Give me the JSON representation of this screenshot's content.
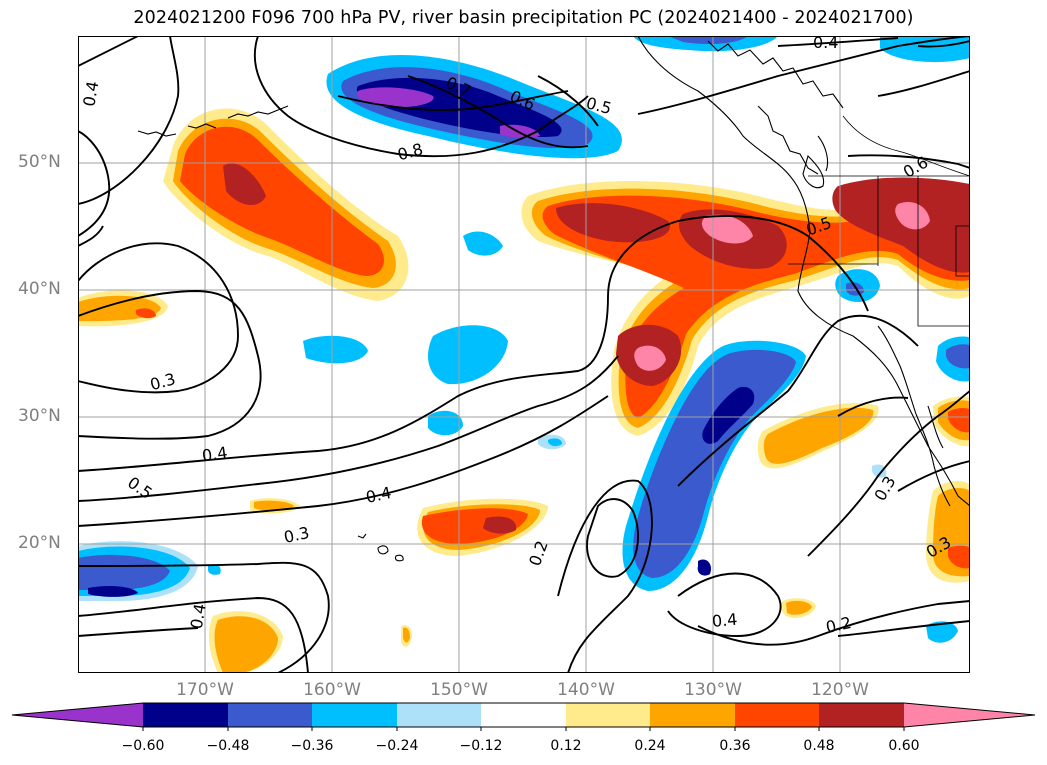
{
  "title": "2024021200 F096 700 hPa PV, river basin precipitation PC (2024021400 - 2024021700)",
  "lat_labels": [
    "50°N",
    "40°N",
    "30°N",
    "20°N"
  ],
  "lon_labels": [
    "170°W",
    "160°W",
    "150°W",
    "140°W",
    "130°W",
    "120°W"
  ],
  "colorbar": {
    "tick_labels": [
      "−0.60",
      "−0.48",
      "−0.36",
      "−0.24",
      "−0.12",
      "0.12",
      "0.24",
      "0.36",
      "0.48",
      "0.60"
    ],
    "colors": [
      "#9933CC",
      "#00008B",
      "#3A5ACD",
      "#00BFFF",
      "#ADE1FA",
      "#FFFFFF",
      "#FFEB8B",
      "#FFA500",
      "#FF4500",
      "#B22222",
      "#FF85A8"
    ]
  },
  "contour_labels": [
    "0.4",
    "0.4",
    "0.7",
    "0.6",
    "0.5",
    "0.8",
    "0.6",
    "0.5",
    "0.3",
    "0.4",
    "0.5",
    "0.4",
    "0.3",
    "0.2",
    "0.4",
    "0.2",
    "0.4",
    "0.3",
    "0.3"
  ]
}
